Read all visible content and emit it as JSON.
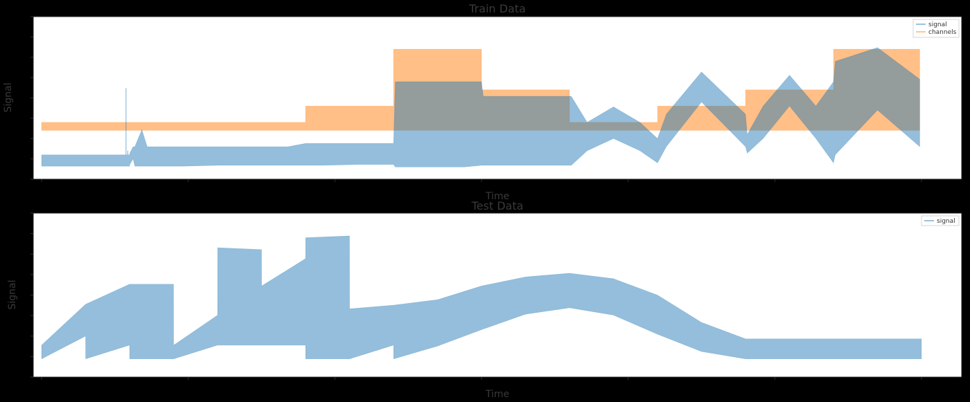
{
  "chart_data": [
    {
      "type": "line",
      "title": "Train Data",
      "xlabel": "Time",
      "ylabel": "Signal",
      "xlim": [
        0,
        500
      ],
      "ylim": [
        -6,
        14
      ],
      "colors": {
        "signal": "#1f77b4",
        "channels": "#ff7f0e"
      },
      "legend_position": "top-right",
      "grid": false,
      "series": [
        {
          "name": "signal",
          "x": [
            0,
            10,
            20,
            30,
            40,
            49,
            50,
            50.1,
            52,
            53,
            57,
            60,
            70,
            80,
            100,
            120,
            140,
            150,
            160,
            180,
            200,
            201,
            220,
            240,
            250,
            251,
            270,
            300,
            301,
            310,
            325,
            340,
            350,
            355,
            375,
            400,
            401,
            410,
            425,
            440,
            450,
            451,
            475,
            499
          ],
          "low": [
            -4.4,
            -4.4,
            -4.4,
            -4.4,
            -4.4,
            -4.4,
            -4.4,
            -4.2,
            -3.5,
            -4.4,
            -4.4,
            -4.4,
            -4.4,
            -4.4,
            -4.3,
            -4.3,
            -4.3,
            -4.3,
            -4.3,
            -4.2,
            -4.2,
            -4.5,
            -4.5,
            -4.5,
            -4.3,
            -4.3,
            -4.3,
            -4.3,
            -4.3,
            -2.5,
            -1.0,
            -2.5,
            -4.0,
            -2.0,
            3.5,
            -2.0,
            -2.8,
            -1.0,
            3.0,
            -1.0,
            -4.0,
            -3.0,
            2.5,
            -2.0
          ],
          "high": [
            -3.0,
            -3.0,
            -3.0,
            -3.0,
            -3.0,
            -3.0,
            -3.0,
            -2.8,
            -2.0,
            -2.0,
            0.1,
            -2.0,
            -2.0,
            -2.0,
            -2.0,
            -2.0,
            -2.0,
            -1.6,
            -1.6,
            -1.6,
            -1.6,
            6.0,
            6.0,
            6.0,
            6.0,
            4.2,
            4.2,
            4.2,
            4.2,
            1.0,
            2.9,
            1.0,
            -1.0,
            2.0,
            7.2,
            2.0,
            -0.5,
            3.0,
            6.8,
            3.0,
            6.0,
            8.5,
            10.2,
            6.3
          ],
          "spikes": [
            [
              48,
              5.2
            ],
            [
              49,
              -2.5
            ]
          ]
        },
        {
          "name": "channels",
          "x": [
            0,
            150,
            150.01,
            200,
            200.01,
            250,
            250.01,
            300,
            300.01,
            350,
            350.01,
            400,
            400.01,
            450,
            450.01,
            499
          ],
          "low": [
            0,
            0,
            0,
            0,
            0,
            0,
            0,
            0,
            0,
            0,
            0,
            0,
            0,
            0,
            0,
            0
          ],
          "high": [
            1,
            1,
            3,
            3,
            10,
            10,
            5,
            5,
            1,
            1,
            3,
            3,
            5,
            5,
            10,
            10
          ]
        }
      ]
    },
    {
      "type": "line",
      "title": "Test Data",
      "xlabel": "Time",
      "ylabel": "Signal",
      "xlim": [
        500,
        700
      ],
      "ylim": [
        -5,
        13
      ],
      "colors": {
        "signal": "#1f77b4"
      },
      "legend_position": "top-right",
      "grid": false,
      "series": [
        {
          "name": "signal",
          "x": [
            500,
            510,
            510.01,
            520,
            520.01,
            530,
            530.01,
            540,
            540.01,
            550,
            550.01,
            560,
            560.01,
            570,
            570.01,
            580,
            580.01,
            590,
            600,
            610,
            620,
            630,
            640,
            650,
            660,
            670,
            680,
            690,
            700
          ],
          "low": [
            -3.0,
            -0.5,
            -3.0,
            -1.5,
            -3.0,
            -3.0,
            -3.0,
            -1.5,
            -1.5,
            -1.5,
            -1.5,
            -1.5,
            -3.0,
            -3.0,
            -3.0,
            -1.5,
            -3.0,
            -1.6,
            0.2,
            1.9,
            2.6,
            1.8,
            -0.3,
            -2.2,
            -3.0,
            -3.0,
            -3.0,
            -3.0,
            -3.0
          ],
          "high": [
            -1.5,
            3.0,
            3.0,
            5.2,
            5.2,
            5.2,
            -1.5,
            1.8,
            9.2,
            9.0,
            5.0,
            8.0,
            10.3,
            10.5,
            2.5,
            2.9,
            2.9,
            3.5,
            5.0,
            6.0,
            6.4,
            5.8,
            4.0,
            1.0,
            -0.8,
            -0.8,
            -0.8,
            -0.8,
            -0.8
          ]
        }
      ]
    }
  ]
}
